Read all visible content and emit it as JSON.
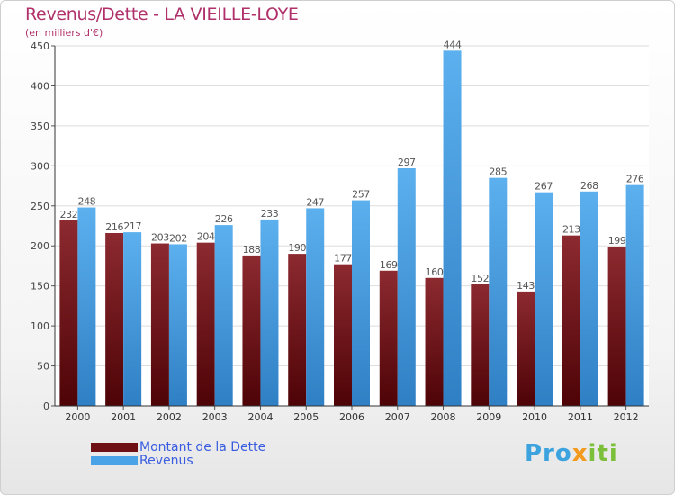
{
  "header": {
    "title": "Revenus/Dette - LA VIEILLE-LOYE",
    "subtitle": "(en milliers d'€)"
  },
  "legend": {
    "items": [
      {
        "label": "Montant de la Dette",
        "color": "#6e0f14"
      },
      {
        "label": "Revenus",
        "color": "#4aa3e6"
      }
    ]
  },
  "logo": {
    "text_a": "Pro",
    "text_b": "x",
    "text_c": "iti"
  },
  "chart_data": {
    "type": "bar",
    "title": "Revenus/Dette - LA VIEILLE-LOYE",
    "subtitle": "(en milliers d'€)",
    "xlabel": "",
    "ylabel": "",
    "categories": [
      "2000",
      "2001",
      "2002",
      "2003",
      "2004",
      "2005",
      "2006",
      "2007",
      "2008",
      "2009",
      "2010",
      "2011",
      "2012"
    ],
    "series": [
      {
        "name": "Montant de la Dette",
        "color": "#6e0f14",
        "values": [
          232,
          216,
          203,
          204,
          188,
          190,
          177,
          169,
          160,
          152,
          143,
          213,
          199
        ]
      },
      {
        "name": "Revenus",
        "color": "#4aa3e6",
        "values": [
          248,
          217,
          202,
          226,
          233,
          247,
          257,
          297,
          444,
          285,
          267,
          268,
          276
        ]
      }
    ],
    "ylim": [
      0,
      450
    ],
    "yticks": [
      0,
      50,
      100,
      150,
      200,
      250,
      300,
      350,
      400,
      450
    ],
    "grid": true,
    "legend_position": "bottom-left"
  }
}
